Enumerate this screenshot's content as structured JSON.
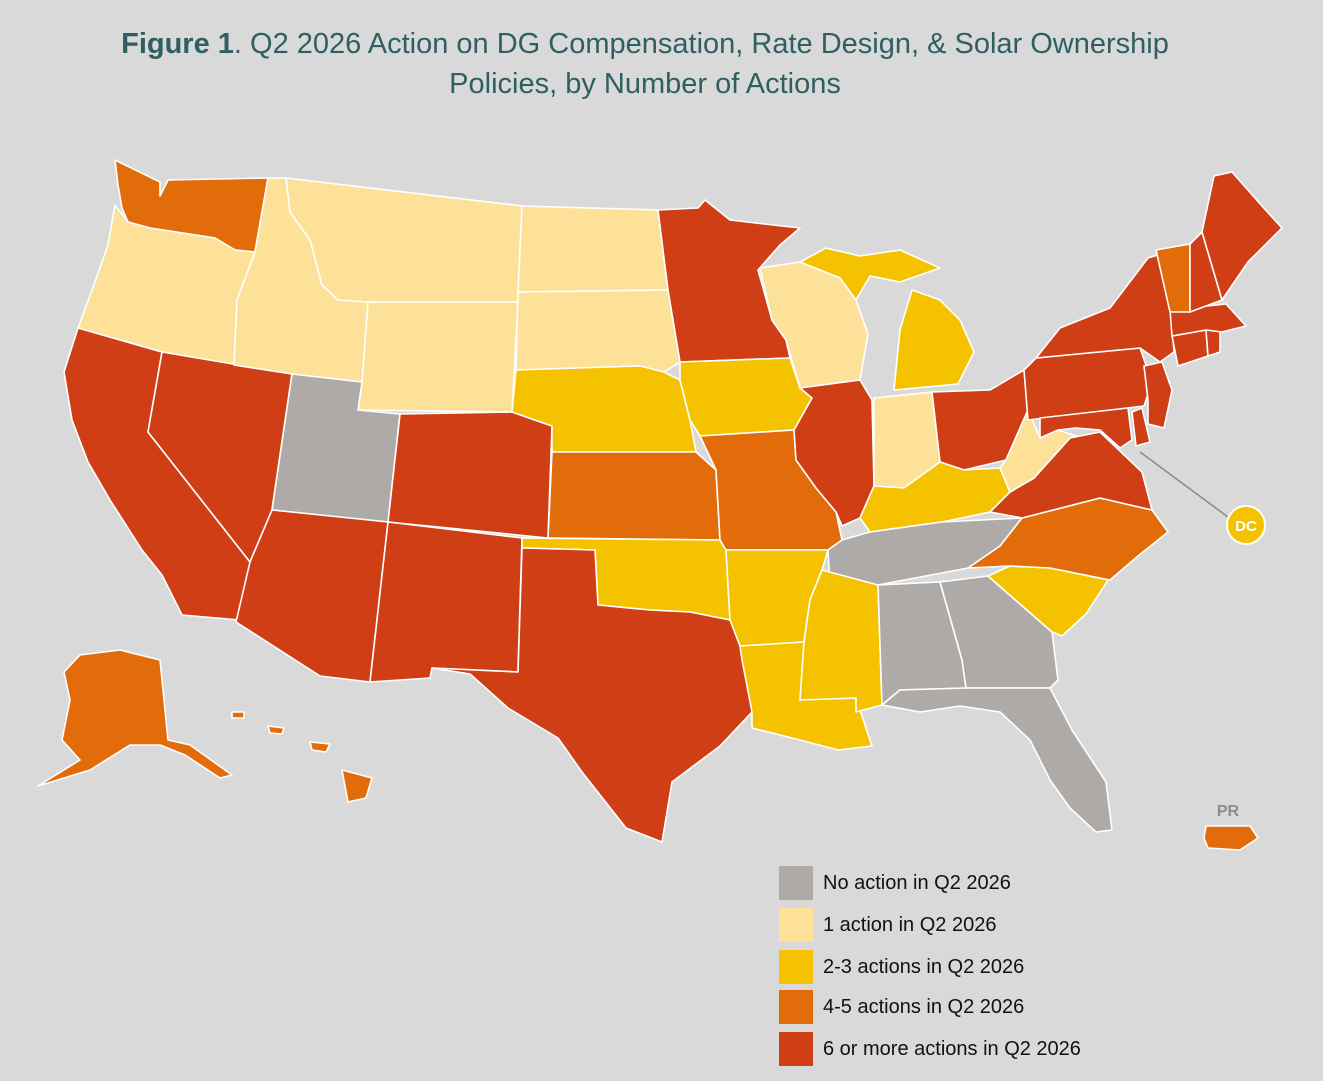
{
  "title": {
    "figure_label": "Figure 1",
    "text": ". Q2 2026 Action on DG Compensation, Rate Design, & Solar Ownership",
    "line2": "Policies, by Number of Actions"
  },
  "colors": {
    "background": "#d9d9d9",
    "title": "#2e5f62",
    "category_none": "#aeaaa7",
    "category_1": "#fde199",
    "category_2_3": "#f5c200",
    "category_4_5": "#e36c0a",
    "category_6_plus": "#cf3e15"
  },
  "legend": [
    {
      "key": "none",
      "label": "No action in Q2 2026",
      "color": "#aeaaa7"
    },
    {
      "key": "one",
      "label": "1 action in Q2 2026",
      "color": "#fde199"
    },
    {
      "key": "two_three",
      "label": "2-3 actions in Q2 2026",
      "color": "#f5c200"
    },
    {
      "key": "four_five",
      "label": "4-5 actions in Q2 2026",
      "color": "#e36c0a"
    },
    {
      "key": "six_plus",
      "label": "6 or more actions in Q2 2026",
      "color": "#cf3e15"
    }
  ],
  "callouts": {
    "dc": "DC",
    "pr": "PR"
  },
  "state_categories": {
    "WA": "four_five",
    "OR": "one",
    "CA": "six_plus",
    "ID": "one",
    "NV": "six_plus",
    "MT": "one",
    "WY": "one",
    "UT": "none",
    "AZ": "six_plus",
    "CO": "six_plus",
    "NM": "six_plus",
    "ND": "one",
    "SD": "one",
    "NE": "two_three",
    "KS": "four_five",
    "OK": "two_three",
    "TX": "six_plus",
    "MN": "six_plus",
    "IA": "two_three",
    "MO": "four_five",
    "AR": "two_three",
    "LA": "two_three",
    "WI": "one",
    "IL": "six_plus",
    "MI": "two_three",
    "IN": "one",
    "OH": "six_plus",
    "KY": "two_three",
    "TN": "none",
    "MS": "two_three",
    "AL": "none",
    "GA": "none",
    "FL": "none",
    "SC": "two_three",
    "NC": "four_five",
    "VA": "six_plus",
    "WV": "one",
    "MD": "six_plus",
    "DE": "six_plus",
    "NJ": "six_plus",
    "PA": "six_plus",
    "NY": "six_plus",
    "CT": "six_plus",
    "RI": "six_plus",
    "MA": "six_plus",
    "VT": "four_five",
    "NH": "six_plus",
    "ME": "six_plus",
    "AK": "four_five",
    "HI": "four_five",
    "DC": "two_three",
    "PR": "four_five"
  }
}
